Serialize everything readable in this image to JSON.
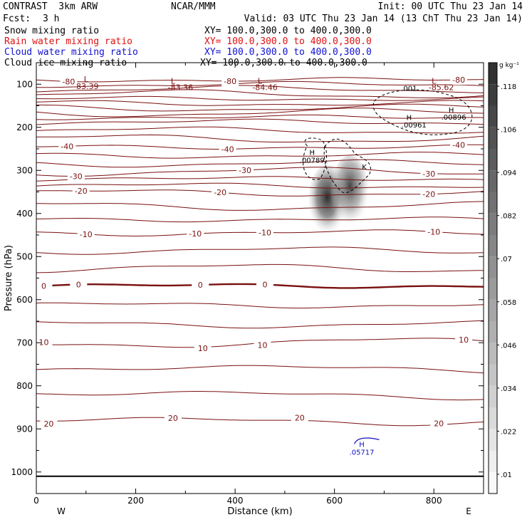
{
  "header": {
    "title": "CONTRAST  3km ARW",
    "center": "NCAR/MMM",
    "init": "Init: 00 UTC Thu 23 Jan 14",
    "fcst_label": "Fcst:",
    "fcst_value": "3 h",
    "valid": "Valid: 03 UTC Thu 23 Jan 14 (13 ChT Thu 23 Jan 14)"
  },
  "fields": [
    {
      "name": "Snow mixing ratio",
      "xy": "XY= 100.0,300.0 to 400.0,300.0",
      "color": "#000000"
    },
    {
      "name": "Rain water mixing ratio",
      "xy": "XY= 100.0,300.0 to 400.0,300.0",
      "color": "#e01010"
    },
    {
      "name": "Cloud water mixing ratio",
      "xy": "XY= 100.0,300.0 to 400.0,300.0",
      "color": "#1010d0"
    },
    {
      "name": "Cloud ice mixing ratio",
      "xy": "XY= 100.0,300.0 to 400.0,300.0",
      "color": "#000000"
    }
  ],
  "colors": {
    "temperature": "#7a1010",
    "cloud_water": "#1010c0",
    "cloud_ice": "#000000",
    "frame": "#000000"
  },
  "chart_data": {
    "type": "cross-section",
    "xlabel": "Distance (km)",
    "ylabel": "Pressure (hPa)",
    "xlim": [
      0,
      900
    ],
    "ylim": [
      1050,
      50
    ],
    "x_ticks": [
      0,
      200,
      400,
      600,
      800
    ],
    "y_ticks": [
      100,
      200,
      300,
      400,
      500,
      600,
      700,
      800,
      900,
      1000
    ],
    "x_end_labels": {
      "left": "W",
      "right": "E"
    },
    "colorbar": {
      "unit": "g kg⁻¹",
      "levels": [
        ".01",
        ".022",
        ".034",
        ".046",
        ".058",
        ".07",
        ".082",
        ".094",
        ".106",
        ".118"
      ]
    },
    "temperature_levels": [
      {
        "t": -80,
        "p": 90,
        "labels": [
          {
            "x": 65,
            "text": "-80"
          },
          {
            "x": 390,
            "text": "-80"
          },
          {
            "x": 850,
            "text": "-80"
          }
        ]
      },
      {
        "t": -70,
        "p": 123
      },
      {
        "t": -60,
        "p": 155
      },
      {
        "t": -50,
        "p": 188
      },
      {
        "t": -40,
        "p": 246,
        "labels": [
          {
            "x": 62,
            "text": "-40"
          },
          {
            "x": 385,
            "text": "-40"
          },
          {
            "x": 850,
            "text": "-40"
          }
        ]
      },
      {
        "t": -30,
        "p": 303,
        "labels": [
          {
            "x": 80,
            "text": "-30"
          },
          {
            "x": 420,
            "text": "-30"
          },
          {
            "x": 790,
            "text": "-30"
          }
        ]
      },
      {
        "t": -20,
        "p": 352,
        "labels": [
          {
            "x": 90,
            "text": "-20"
          },
          {
            "x": 370,
            "text": "-20"
          },
          {
            "x": 790,
            "text": "-20"
          }
        ]
      },
      {
        "t": -10,
        "p": 445,
        "labels": [
          {
            "x": 100,
            "text": "-10"
          },
          {
            "x": 320,
            "text": "-10"
          },
          {
            "x": 460,
            "text": "-10"
          },
          {
            "x": 800,
            "text": "-10"
          }
        ]
      },
      {
        "t": 0,
        "p": 568,
        "thick": true,
        "labels": [
          {
            "x": 15,
            "text": "0"
          },
          {
            "x": 85,
            "text": "0"
          },
          {
            "x": 330,
            "text": "0"
          },
          {
            "x": 460,
            "text": "0"
          }
        ]
      },
      {
        "t": 10,
        "p": 702,
        "labels": [
          {
            "x": 15,
            "text": "10"
          },
          {
            "x": 335,
            "text": "10"
          },
          {
            "x": 455,
            "text": "10"
          },
          {
            "x": 860,
            "text": "10"
          }
        ]
      },
      {
        "t": 20,
        "p": 880,
        "labels": [
          {
            "x": 25,
            "text": "20"
          },
          {
            "x": 275,
            "text": "20"
          },
          {
            "x": 530,
            "text": "20"
          },
          {
            "x": 810,
            "text": "20"
          }
        ]
      }
    ],
    "temperature_annotations": [
      {
        "x": 100,
        "p": 95,
        "text": "L"
      },
      {
        "x": 100,
        "p": 111,
        "text": "-83.39"
      },
      {
        "x": 275,
        "p": 99,
        "text": "L"
      },
      {
        "x": 290,
        "p": 114,
        "text": "-83.36"
      },
      {
        "x": 450,
        "p": 99,
        "text": "L"
      },
      {
        "x": 460,
        "p": 114,
        "text": "-84.46"
      },
      {
        "x": 800,
        "p": 99,
        "text": "L"
      },
      {
        "x": 815,
        "p": 114,
        "text": "-85.62"
      }
    ],
    "cloud_ice_annotations": [
      {
        "x": 555,
        "p": 264,
        "text": "H"
      },
      {
        "x": 555,
        "p": 282,
        "text": ".00789"
      },
      {
        "x": 750,
        "p": 115,
        "text": ".001"
      },
      {
        "x": 750,
        "p": 183,
        "text": "H"
      },
      {
        "x": 760,
        "p": 200,
        "text": ".00961"
      },
      {
        "x": 835,
        "p": 166,
        "text": "H"
      },
      {
        "x": 840,
        "p": 182,
        "text": ".00896"
      },
      {
        "x": 660,
        "p": 298,
        "text": "K"
      }
    ],
    "cloud_water_annotations": [
      {
        "x": 655,
        "p": 942,
        "text": "H"
      },
      {
        "x": 655,
        "p": 960,
        "text": ".05717"
      }
    ],
    "snow_core": {
      "x_range": [
        540,
        680
      ],
      "p_range": [
        260,
        480
      ],
      "peak": 0.12
    }
  }
}
